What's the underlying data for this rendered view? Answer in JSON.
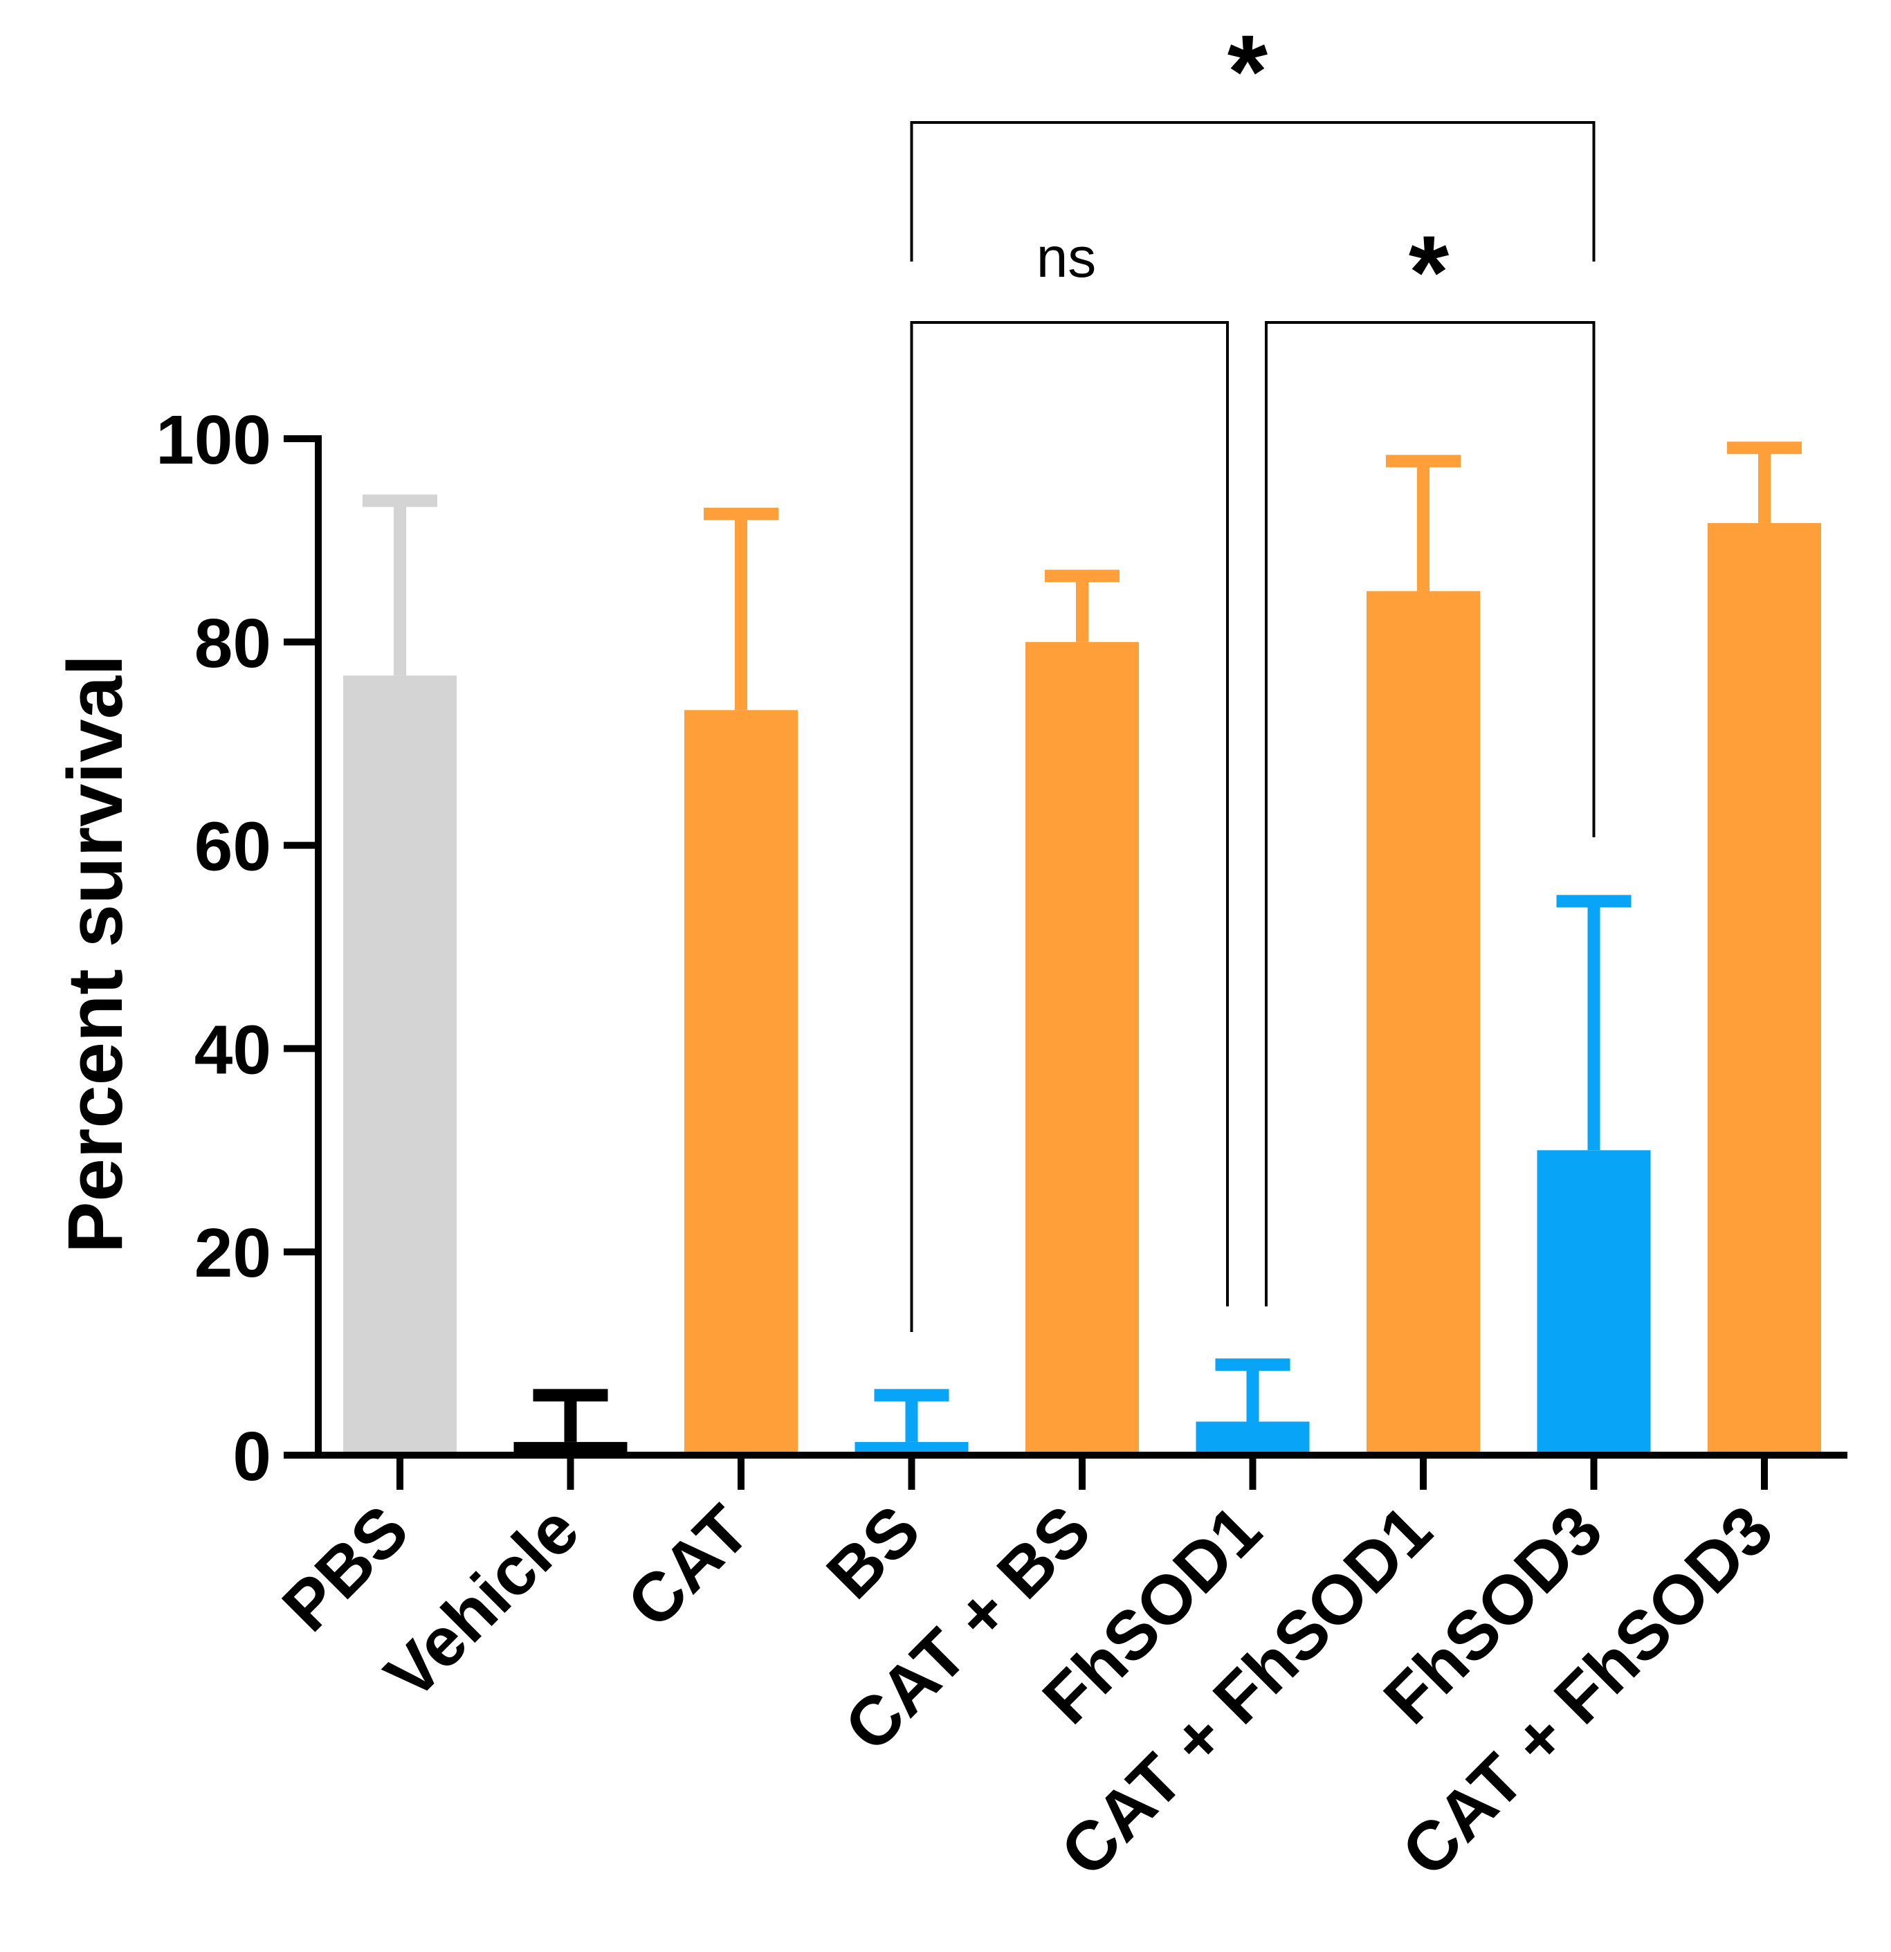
{
  "chart_data": {
    "type": "bar",
    "title": "",
    "xlabel": "",
    "ylabel": "Percent survival",
    "ylim": [
      0,
      100
    ],
    "yticks": [
      0,
      20,
      40,
      60,
      80,
      100
    ],
    "grid": false,
    "categories": [
      "PBS",
      "Vehicle",
      "CAT",
      "BS",
      "CAT + BS",
      "FhSOD1",
      "CAT + FhSOD1",
      "FhSOD3",
      "CAT + FhSOD3"
    ],
    "values": [
      76.7,
      1.3,
      73.3,
      1.3,
      80.0,
      3.3,
      85.0,
      30.0,
      91.7
    ],
    "error_upper": [
      93.9,
      5.9,
      92.6,
      5.9,
      86.5,
      8.9,
      97.8,
      54.5,
      99.1
    ],
    "bar_colors": [
      "#d4d4d4",
      "#000000",
      "#ff9f3a",
      "#08a4f7",
      "#ff9f3a",
      "#08a4f7",
      "#ff9f3a",
      "#08a4f7",
      "#ff9f3a"
    ],
    "comparisons": [
      {
        "from": "BS",
        "to": "FhSOD1",
        "label": "ns"
      },
      {
        "from": "CAT + FhSOD1",
        "to": "FhSOD3",
        "label": "*"
      },
      {
        "from": "BS",
        "to": "FhSOD3",
        "label": "*"
      }
    ]
  }
}
